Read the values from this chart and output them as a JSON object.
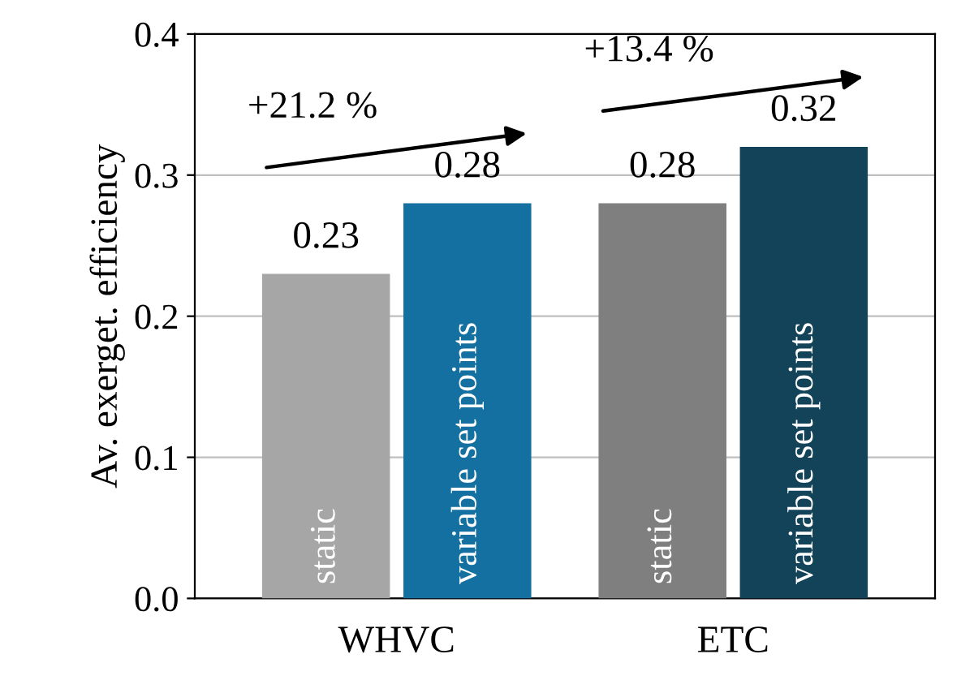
{
  "chart_data": {
    "type": "bar",
    "ylabel": "Av. exerget. efficiency",
    "categories": [
      "WHVC",
      "ETC"
    ],
    "series": [
      {
        "name": "static",
        "colors": [
          "#a6a6a6",
          "#7f7f7f"
        ],
        "values": [
          0.23,
          0.28
        ]
      },
      {
        "name": "variable set points",
        "colors": [
          "#1470a0",
          "#134359"
        ],
        "values": [
          0.28,
          0.32
        ]
      }
    ],
    "ylim": [
      0,
      0.4
    ],
    "yticks": [
      {
        "value": 0,
        "label": "0.0"
      },
      0.1,
      0.2,
      0.3,
      0.4
    ],
    "grid": "y",
    "data_labels": true,
    "legend": false,
    "annotations": [
      "+21.2 %",
      "+13.4 %"
    ]
  }
}
